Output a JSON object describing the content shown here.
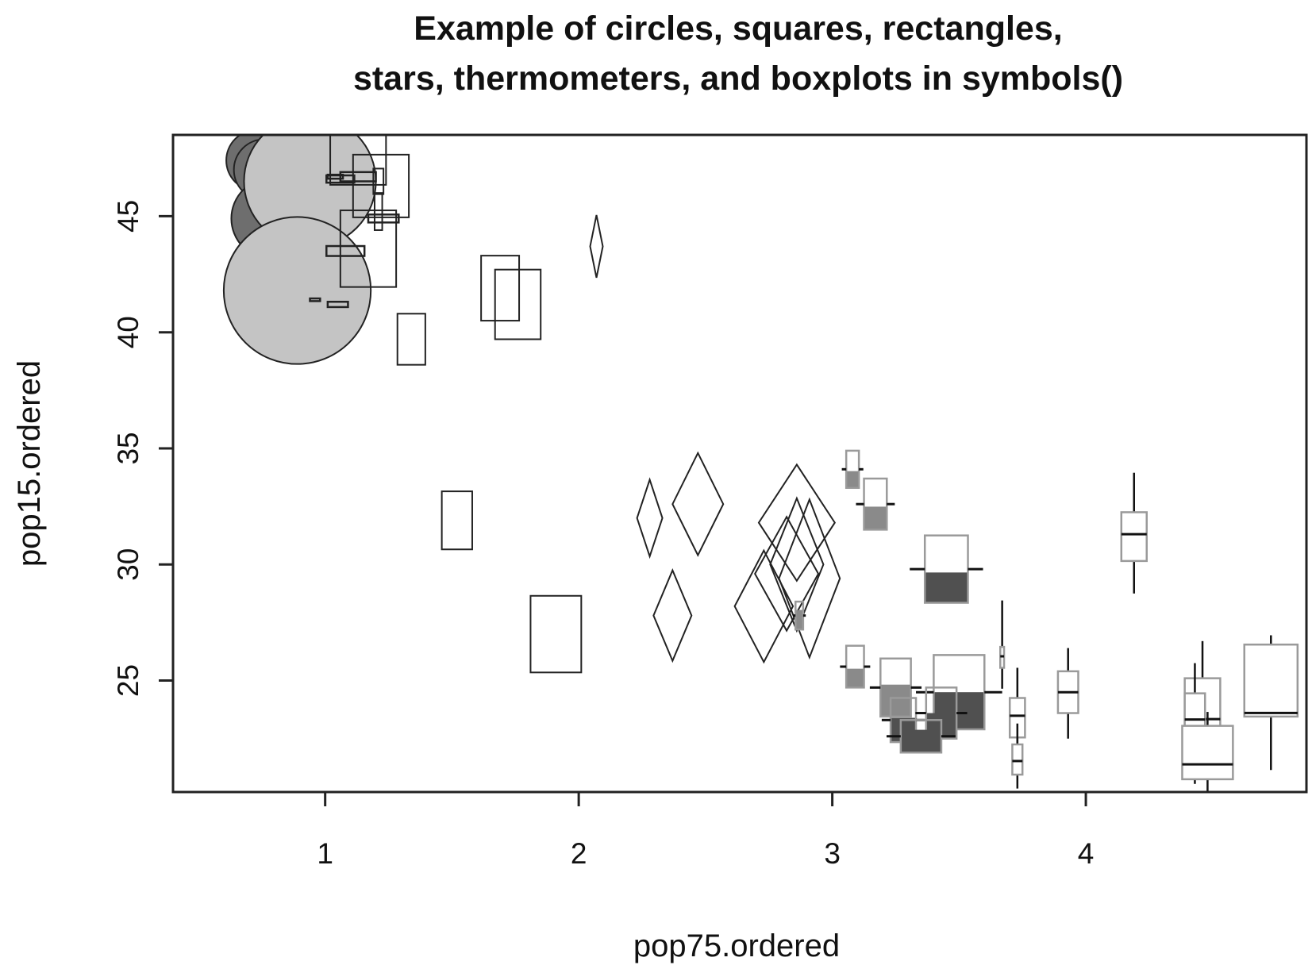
{
  "chart_data": {
    "type": "scatter",
    "title_lines": [
      "Example of circles, squares, rectangles,",
      "stars,  thermometers, and boxplots in symbols()"
    ],
    "xlabel": "pop75.ordered",
    "ylabel": "pop15.ordered",
    "xlim": [
      0.4,
      4.87
    ],
    "ylim": [
      20.2,
      48.5
    ],
    "x_ticks": [
      1,
      2,
      3,
      4
    ],
    "y_ticks": [
      25,
      30,
      35,
      40,
      45
    ],
    "grid": false,
    "colors": {
      "stroke": "#222222",
      "light_fill": "#c4c4c4",
      "dark_fill": "#6e6e6e",
      "thermo_mid": "#8a8a8a",
      "thermo_dark": "#505050",
      "box_stroke": "#9a9a9a"
    },
    "circles": [
      {
        "x": 0.73,
        "y": 47.4,
        "r": 0.12,
        "fill": "dark"
      },
      {
        "x": 0.76,
        "y": 47.0,
        "r": 0.12,
        "fill": "dark"
      },
      {
        "x": 0.79,
        "y": 44.9,
        "r": 0.16,
        "fill": "dark"
      },
      {
        "x": 0.94,
        "y": 46.5,
        "r": 0.26,
        "fill": "light"
      },
      {
        "x": 0.89,
        "y": 41.8,
        "r": 0.29,
        "fill": "light"
      }
    ],
    "squares": [
      {
        "x": 0.96,
        "y": 41.4,
        "s": 0.04
      },
      {
        "x": 1.05,
        "y": 41.2,
        "s": 0.08
      },
      {
        "x": 1.08,
        "y": 43.5,
        "s": 0.15
      },
      {
        "x": 1.06,
        "y": 46.6,
        "s": 0.11
      },
      {
        "x": 1.13,
        "y": 46.7,
        "s": 0.14
      },
      {
        "x": 1.23,
        "y": 44.9,
        "s": 0.12
      },
      {
        "x": 1.04,
        "y": 46.7,
        "s": 0.06
      }
    ],
    "rectangles": [
      {
        "x": 1.17,
        "y": 43.6,
        "w": 0.22,
        "h": 3.3
      },
      {
        "x": 1.22,
        "y": 46.3,
        "w": 0.22,
        "h": 2.7
      },
      {
        "x": 1.13,
        "y": 48.0,
        "w": 0.22,
        "h": 3.3
      },
      {
        "x": 1.34,
        "y": 39.7,
        "w": 0.11,
        "h": 2.2
      },
      {
        "x": 1.69,
        "y": 41.9,
        "w": 0.15,
        "h": 2.8
      },
      {
        "x": 1.76,
        "y": 41.2,
        "w": 0.18,
        "h": 3.0
      },
      {
        "x": 1.52,
        "y": 31.9,
        "w": 0.12,
        "h": 2.5
      },
      {
        "x": 1.91,
        "y": 27.0,
        "w": 0.2,
        "h": 3.3
      },
      {
        "x": 1.21,
        "y": 46.5,
        "w": 0.04,
        "h": 1.1
      },
      {
        "x": 1.21,
        "y": 45.2,
        "w": 0.03,
        "h": 1.6
      }
    ],
    "stars": [
      {
        "x": 2.07,
        "y": 43.7,
        "w": 0.05,
        "h": 2.7
      },
      {
        "x": 2.28,
        "y": 32.0,
        "w": 0.1,
        "h": 3.3
      },
      {
        "x": 2.37,
        "y": 27.8,
        "w": 0.15,
        "h": 3.9
      },
      {
        "x": 2.47,
        "y": 32.6,
        "w": 0.2,
        "h": 4.4
      },
      {
        "x": 2.86,
        "y": 31.8,
        "w": 0.3,
        "h": 5.0
      },
      {
        "x": 2.73,
        "y": 28.2,
        "w": 0.23,
        "h": 4.8
      },
      {
        "x": 2.82,
        "y": 29.6,
        "w": 0.25,
        "h": 4.9
      },
      {
        "x": 2.91,
        "y": 29.4,
        "w": 0.24,
        "h": 6.8
      },
      {
        "x": 2.86,
        "y": 30.0,
        "w": 0.21,
        "h": 5.7
      }
    ],
    "thermometers": [
      {
        "x": 3.08,
        "y": 34.1,
        "w": 0.05,
        "h": 1.6,
        "fill": 0.45,
        "color": "mid"
      },
      {
        "x": 3.17,
        "y": 32.6,
        "w": 0.09,
        "h": 2.2,
        "fill": 0.45,
        "color": "mid"
      },
      {
        "x": 2.87,
        "y": 27.8,
        "w": 0.03,
        "h": 1.2,
        "fill": 0.7,
        "color": "mid"
      },
      {
        "x": 3.09,
        "y": 25.6,
        "w": 0.07,
        "h": 1.8,
        "fill": 0.45,
        "color": "mid"
      },
      {
        "x": 3.25,
        "y": 24.7,
        "w": 0.12,
        "h": 2.5,
        "fill": 0.55,
        "color": "mid"
      },
      {
        "x": 3.28,
        "y": 23.3,
        "w": 0.1,
        "h": 1.9,
        "fill": 0.55,
        "color": "dark"
      },
      {
        "x": 3.45,
        "y": 29.8,
        "w": 0.17,
        "h": 2.9,
        "fill": 0.45,
        "color": "dark"
      },
      {
        "x": 3.5,
        "y": 24.5,
        "w": 0.2,
        "h": 3.2,
        "fill": 0.5,
        "color": "dark"
      },
      {
        "x": 3.43,
        "y": 23.6,
        "w": 0.12,
        "h": 2.2,
        "fill": 0.5,
        "color": "dark"
      },
      {
        "x": 3.35,
        "y": 22.6,
        "w": 0.16,
        "h": 1.4,
        "fill": 0.7,
        "color": "dark"
      }
    ],
    "boxplots": [
      {
        "x": 3.67,
        "y": 26.0,
        "w": 0.015,
        "h": 0.9,
        "wlo": 0.9,
        "whi": 2.0,
        "med": 0.45
      },
      {
        "x": 3.73,
        "y": 23.4,
        "w": 0.06,
        "h": 1.7,
        "wlo": 1.2,
        "whi": 1.3,
        "med": 0.45
      },
      {
        "x": 3.73,
        "y": 21.6,
        "w": 0.04,
        "h": 1.3,
        "wlo": 0.6,
        "whi": 0.9,
        "med": 0.55
      },
      {
        "x": 3.93,
        "y": 24.5,
        "w": 0.08,
        "h": 1.8,
        "wlo": 1.1,
        "whi": 1.0,
        "med": 0.5
      },
      {
        "x": 4.19,
        "y": 31.2,
        "w": 0.1,
        "h": 2.1,
        "wlo": 1.4,
        "whi": 1.7,
        "med": 0.45
      },
      {
        "x": 4.46,
        "y": 23.5,
        "w": 0.14,
        "h": 3.2,
        "wlo": 1.0,
        "whi": 1.6,
        "med": 0.55
      },
      {
        "x": 4.43,
        "y": 23.2,
        "w": 0.08,
        "h": 2.5,
        "wlo": 1.4,
        "whi": 1.3,
        "med": 0.45
      },
      {
        "x": 4.48,
        "y": 21.9,
        "w": 0.2,
        "h": 2.3,
        "wlo": 0.7,
        "whi": 0.6,
        "med": 0.72
      },
      {
        "x": 4.73,
        "y": 25.0,
        "w": 0.21,
        "h": 3.1,
        "wlo": 2.3,
        "whi": 0.4,
        "med": 0.95
      }
    ]
  }
}
